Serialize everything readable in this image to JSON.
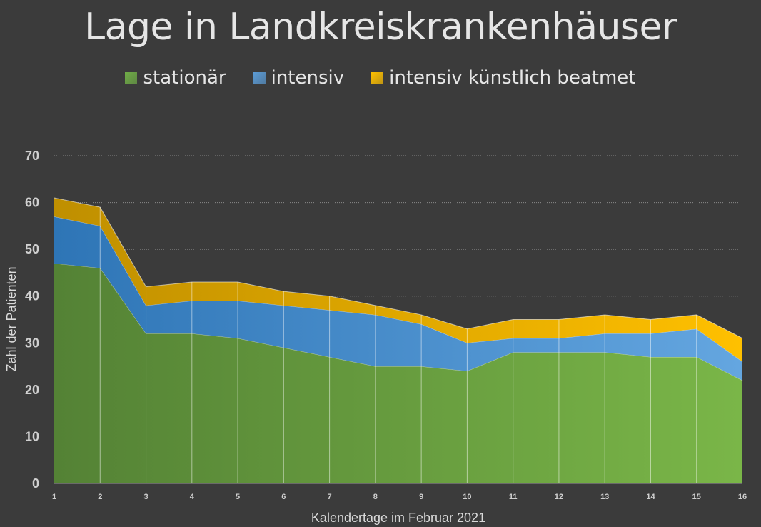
{
  "chart_data": {
    "type": "area",
    "stacked": true,
    "title": "Lage in Landkreiskrankenhäuser",
    "xlabel": "Kalendertage im Februar 2021",
    "ylabel": "Zahl der Patienten",
    "x": [
      1,
      2,
      3,
      4,
      5,
      6,
      7,
      8,
      9,
      10,
      11,
      12,
      13,
      14,
      15,
      16
    ],
    "ylim": [
      0,
      70
    ],
    "yticks": [
      0,
      10,
      20,
      30,
      40,
      50,
      60,
      70
    ],
    "grid": true,
    "legend_position": "top",
    "series": [
      {
        "name": "stationär",
        "color": "#70ad47",
        "values": [
          47,
          46,
          32,
          32,
          31,
          29,
          27,
          25,
          25,
          24,
          28,
          28,
          28,
          27,
          27,
          22
        ]
      },
      {
        "name": "intensiv",
        "color": "#5b9bd5",
        "values": [
          10,
          9,
          6,
          7,
          8,
          9,
          10,
          11,
          9,
          6,
          3,
          3,
          4,
          5,
          6,
          4
        ]
      },
      {
        "name": "intensiv künstlich beatmet",
        "color": "#ffc000",
        "values": [
          4,
          4,
          4,
          4,
          4,
          3,
          3,
          2,
          2,
          3,
          4,
          4,
          4,
          3,
          3,
          5
        ]
      }
    ]
  }
}
